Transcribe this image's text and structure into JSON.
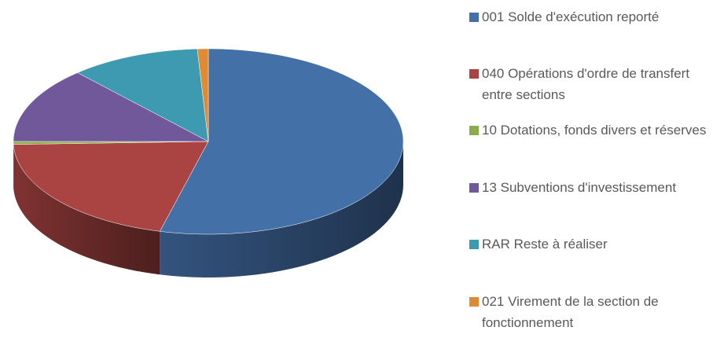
{
  "chart_data": {
    "type": "pie",
    "categories": [
      "001 Solde d'exécution reporté",
      "040 Opérations d'ordre de transfert entre sections",
      "10 Dotations, fonds divers et réserves",
      "13 Subventions d'investissement",
      "RAR Reste à réaliser",
      "021 Virement de la section de fonctionnement"
    ],
    "values": [
      54,
      20.5,
      0.5,
      13.3,
      10.8,
      0.9
    ],
    "colors": [
      "#4470a8",
      "#a94442",
      "#8aad4a",
      "#71589a",
      "#3e9ab0",
      "#e08a34"
    ],
    "legend": "right"
  }
}
